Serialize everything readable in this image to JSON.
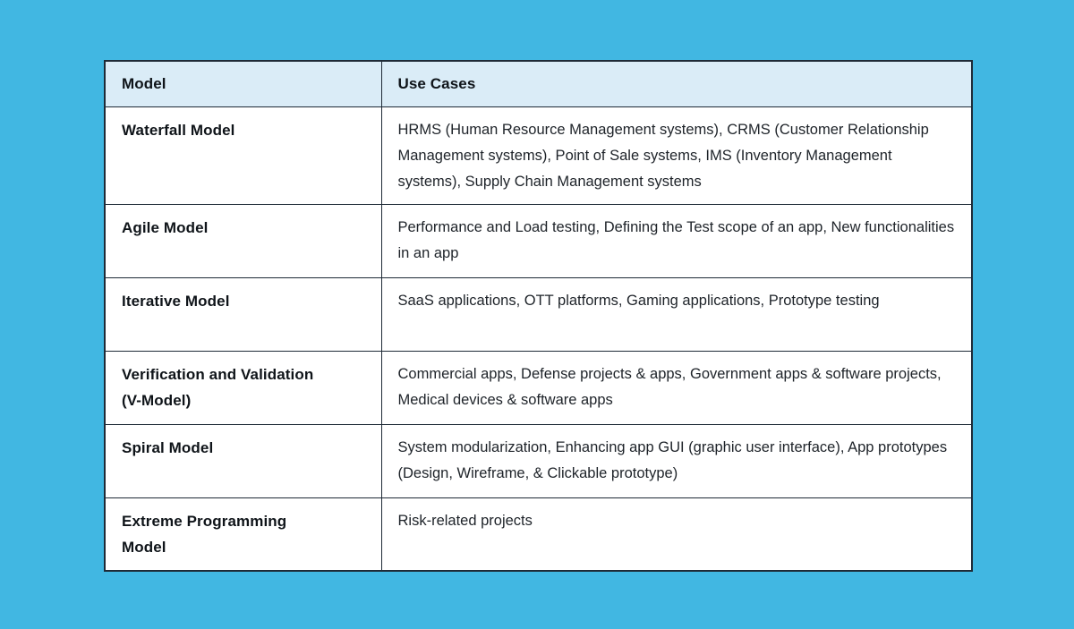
{
  "chart_data": {
    "type": "table",
    "columns": [
      "Model",
      "Use Cases"
    ],
    "rows": [
      {
        "model": "Waterfall Model",
        "use_cases": "HRMS (Human Resource Management systems), CRMS (Customer Relationship Management systems), Point of Sale systems, IMS (Inventory Management systems), Supply Chain Management systems"
      },
      {
        "model": "Agile Model",
        "use_cases": "Performance and Load testing, Defining the Test scope of an app, New functionalities in an app"
      },
      {
        "model": "Iterative Model",
        "use_cases": "SaaS applications, OTT platforms, Gaming applications, Prototype testing"
      },
      {
        "model": "Verification and Validation (V-Model)",
        "use_cases": "Commercial apps, Defense projects & apps, Government apps & software projects, Medical devices & software apps"
      },
      {
        "model": "Spiral Model",
        "use_cases": "System modularization, Enhancing app GUI (graphic user interface), App prototypes (Design, Wireframe, & Clickable prototype)"
      },
      {
        "model": "Extreme Programming Model",
        "use_cases": "Risk-related projects"
      }
    ],
    "layout": {
      "grid": "on",
      "header_row": true
    }
  },
  "colors": {
    "page_background": "#41B7E2",
    "header_background": "#DAECF7",
    "table_background": "#FFFFFF",
    "border": "#1E2A36",
    "heading_text": "#0F1419",
    "body_text": "#1E2329"
  }
}
